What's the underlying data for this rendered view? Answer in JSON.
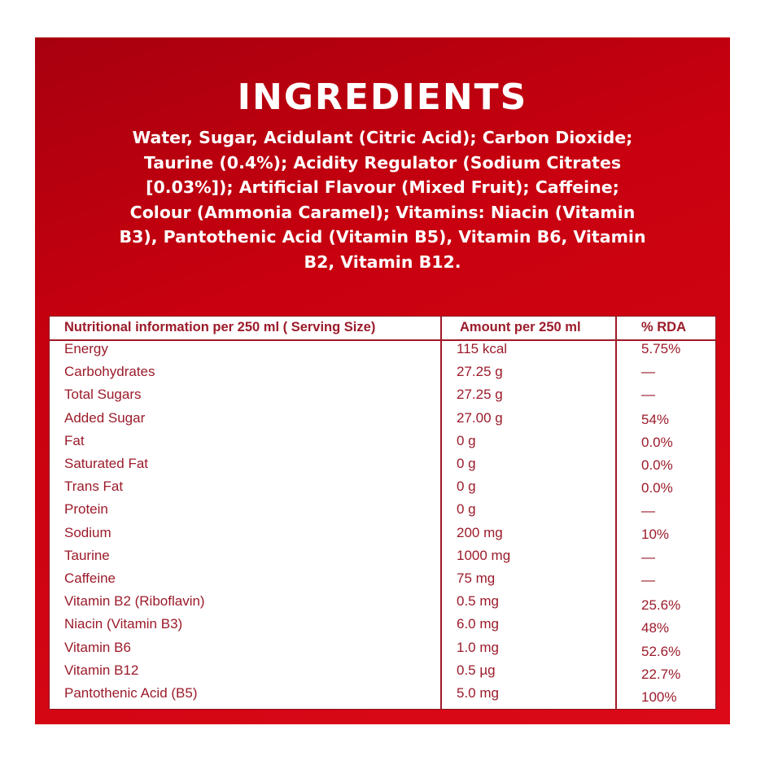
{
  "title": "INGREDIENTS",
  "ingredients": "Water, Sugar, Acidulant (Citric Acid); Carbon Dioxide; Taurine (0.4%); Acidity Regulator (Sodium Citrates [0.03%]); Artificial Flavour (Mixed Fruit); Caffeine; Colour (Ammonia Caramel); Vitamins: Niacin (Vitamin B3), Pantothenic Acid (Vitamin B5), Vitamin B6, Vitamin B2, Vitamin B12.",
  "colors": {
    "panel": "#d0000f",
    "text_dark_red": "#9b1b2a"
  },
  "table": {
    "headers": [
      "Nutritional information per 250 ml ( Serving Size)",
      "Amount per 250 ml",
      "% RDA"
    ],
    "rows": [
      {
        "nutrient": "Energy",
        "amount": "115 kcal",
        "rda": "5.75%"
      },
      {
        "nutrient": "Carbohydrates",
        "amount": "27.25 g",
        "rda": "—"
      },
      {
        "nutrient": "Total Sugars",
        "amount": "27.25 g",
        "rda": "—"
      },
      {
        "nutrient": "Added Sugar",
        "amount": "27.00 g",
        "rda": "54%"
      },
      {
        "nutrient": "Fat",
        "amount": "0 g",
        "rda": "0.0%"
      },
      {
        "nutrient": "Saturated Fat",
        "amount": "0 g",
        "rda": "0.0%"
      },
      {
        "nutrient": "Trans Fat",
        "amount": "0 g",
        "rda": "0.0%"
      },
      {
        "nutrient": "Protein",
        "amount": "0 g",
        "rda": "—"
      },
      {
        "nutrient": "Sodium",
        "amount": "200 mg",
        "rda": "10%"
      },
      {
        "nutrient": "Taurine",
        "amount": "1000 mg",
        "rda": "—"
      },
      {
        "nutrient": "Caffeine",
        "amount": "75 mg",
        "rda": "—"
      },
      {
        "nutrient": "Vitamin B2 (Riboflavin)",
        "amount": "0.5 mg",
        "rda": "25.6%"
      },
      {
        "nutrient": "Niacin (Vitamin B3)",
        "amount": "6.0 mg",
        "rda": "48%"
      },
      {
        "nutrient": "Vitamin B6",
        "amount": "1.0 mg",
        "rda": "52.6%"
      },
      {
        "nutrient": "Vitamin B12",
        "amount": "0.5 µg",
        "rda": "22.7%"
      },
      {
        "nutrient": "Pantothenic Acid (B5)",
        "amount": "5.0 mg",
        "rda": "100%"
      }
    ]
  }
}
